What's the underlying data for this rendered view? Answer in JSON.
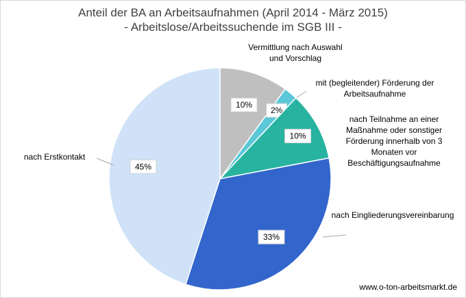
{
  "chart_data": {
    "type": "pie",
    "title": "Anteil der BA an Arbeitsaufnahmen (April 2014 - März 2015)",
    "subtitle": "- Arbeitslose/Arbeitssuchende im SGB III -",
    "slices": [
      {
        "label": "Vermittlung nach Auswahl und Vorschlag",
        "value": 10,
        "value_label": "10%",
        "color": "#bfbfbf"
      },
      {
        "label": "mit (begleitender) Förderung der Arbeitsaufnahme",
        "value": 2,
        "value_label": "2%",
        "color": "#5bc8d8"
      },
      {
        "label": "nach Teilnahme an einer Maßnahme oder sonstiger Förderung innerhalb von 3 Monaten vor Beschäftigungsaufnahme",
        "value": 10,
        "value_label": "10%",
        "color": "#27b3a0"
      },
      {
        "label": "nach Eingliederungsvereinbarung",
        "value": 33,
        "value_label": "33%",
        "color": "#3366cc"
      },
      {
        "label": "nach Erstkontakt",
        "value": 45,
        "value_label": "45%",
        "color": "#cfe2f8"
      }
    ],
    "source": "www.o-ton-arbeitsmarkt.de"
  }
}
